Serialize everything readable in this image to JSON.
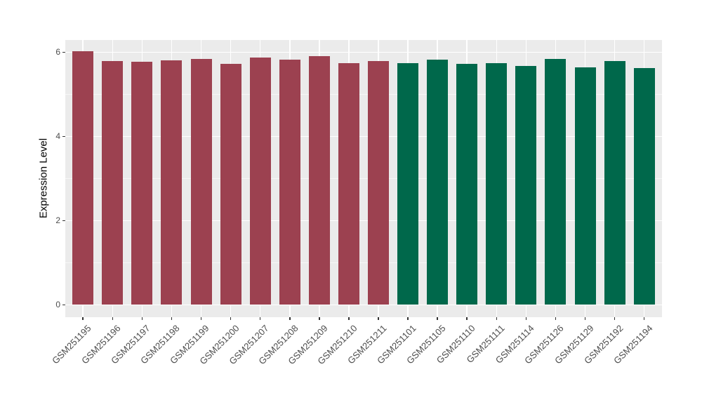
{
  "chart_data": {
    "type": "bar",
    "title": "",
    "xlabel": "",
    "ylabel": "Expression Level",
    "ylim": [
      0,
      6.3
    ],
    "yticks": [
      0,
      2,
      4,
      6
    ],
    "minor_yticks": [
      1,
      3,
      5
    ],
    "grid": "on",
    "legend": "none",
    "bars": [
      {
        "label": "GSM251195",
        "value": 6.02,
        "color": "#9C4150"
      },
      {
        "label": "GSM251196",
        "value": 5.78,
        "color": "#9C4150"
      },
      {
        "label": "GSM251197",
        "value": 5.76,
        "color": "#9C4150"
      },
      {
        "label": "GSM251198",
        "value": 5.8,
        "color": "#9C4150"
      },
      {
        "label": "GSM251199",
        "value": 5.83,
        "color": "#9C4150"
      },
      {
        "label": "GSM251200",
        "value": 5.71,
        "color": "#9C4150"
      },
      {
        "label": "GSM251207",
        "value": 5.87,
        "color": "#9C4150"
      },
      {
        "label": "GSM251208",
        "value": 5.82,
        "color": "#9C4150"
      },
      {
        "label": "GSM251209",
        "value": 5.9,
        "color": "#9C4150"
      },
      {
        "label": "GSM251210",
        "value": 5.73,
        "color": "#9C4150"
      },
      {
        "label": "GSM251211",
        "value": 5.78,
        "color": "#9C4150"
      },
      {
        "label": "GSM251101",
        "value": 5.73,
        "color": "#00684B"
      },
      {
        "label": "GSM251105",
        "value": 5.81,
        "color": "#00684B"
      },
      {
        "label": "GSM251110",
        "value": 5.72,
        "color": "#00684B"
      },
      {
        "label": "GSM251111",
        "value": 5.74,
        "color": "#00684B"
      },
      {
        "label": "GSM251114",
        "value": 5.66,
        "color": "#00684B"
      },
      {
        "label": "GSM251126",
        "value": 5.83,
        "color": "#00684B"
      },
      {
        "label": "GSM251129",
        "value": 5.63,
        "color": "#00684B"
      },
      {
        "label": "GSM251192",
        "value": 5.78,
        "color": "#00684B"
      },
      {
        "label": "GSM251194",
        "value": 5.62,
        "color": "#00684B"
      }
    ],
    "colors": {
      "bar_group_left": "#9C4150",
      "bar_group_right": "#00684B",
      "panel_background": "#EBEBEB",
      "gridline": "#FFFFFF",
      "axis_text": "#4D4D4D",
      "axis_title": "#000000",
      "tick_mark": "#333333",
      "page_background": "#FFFFFF"
    }
  }
}
